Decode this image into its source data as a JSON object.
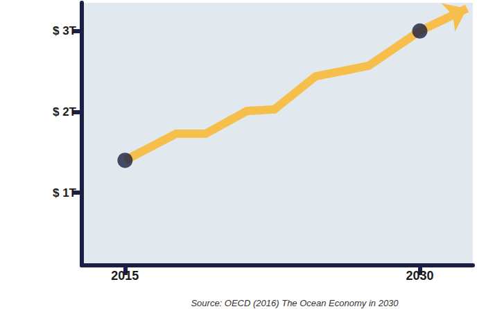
{
  "chart_data": {
    "type": "line",
    "subtitle": "Source: OECD (2016) The Ocean Economy in 2030",
    "xlim": [
      2012.8,
      2032.7
    ],
    "xticks": [
      2015,
      2030
    ],
    "ylim": [
      0.1,
      3.35
    ],
    "yticks": [
      {
        "value": 1,
        "label": "$ 1T"
      },
      {
        "value": 2,
        "label": "$ 2T"
      },
      {
        "value": 3,
        "label": "$ 3T"
      }
    ],
    "grid": false,
    "series": [
      {
        "type": "line",
        "color": "#f6bf4b",
        "marker": "arrow",
        "x": [
          2015,
          2017.6,
          2019.1,
          2021.2,
          2022.6,
          2024.7,
          2027.4,
          2030,
          2032.4
        ],
        "values": [
          1.4,
          1.73,
          1.73,
          2.01,
          2.03,
          2.44,
          2.57,
          3.0,
          3.28
        ]
      },
      {
        "type": "scatter",
        "color": "#1b1f45",
        "marker": "circle",
        "x": [
          2015,
          2030
        ],
        "values": [
          1.4,
          3.0
        ]
      }
    ]
  }
}
